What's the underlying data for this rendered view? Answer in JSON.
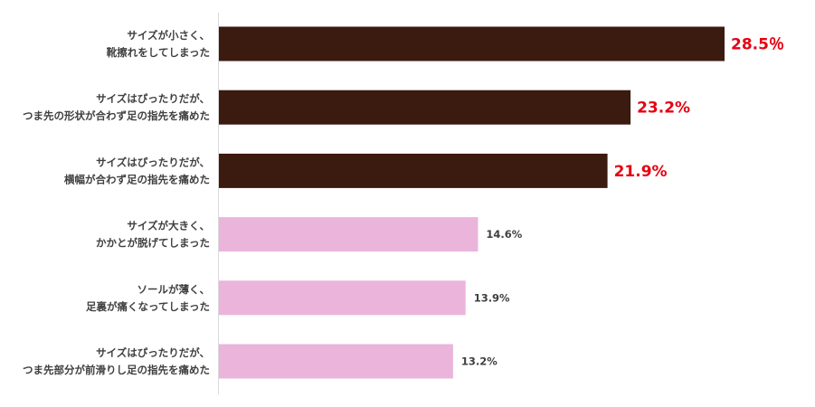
{
  "chart_data": {
    "type": "bar",
    "orientation": "horizontal",
    "categories": [
      [
        "サイズが小さく、",
        "靴擦れをしてしまった"
      ],
      [
        "サイズはぴったりだが、",
        "つま先の形状が合わず足の指先を痛めた"
      ],
      [
        "サイズはぴったりだが、",
        "横幅が合わず足の指先を痛めた"
      ],
      [
        "サイズが大きく、",
        "かかとが脱げてしまった"
      ],
      [
        "ソールが薄く、",
        "足裏が痛くなってしまった"
      ],
      [
        "サイズはぴったりだが、",
        "つま先部分が前滑りし足の指先を痛めた"
      ]
    ],
    "values": [
      28.5,
      23.2,
      21.9,
      14.6,
      13.9,
      13.2
    ],
    "value_labels": [
      "28.5％",
      "23.2%",
      "21.9%",
      "14.6%",
      "13.9%",
      "13.2%"
    ],
    "xlim": [
      0,
      31.2
    ],
    "grid": false,
    "legend": "none",
    "highlight_count": 3
  },
  "colors": {
    "highlight_bar": "#3b1a0f",
    "normal_bar": "#eab4db",
    "highlight_label": "#e60012",
    "normal_label": "#404040",
    "axis_line": "#d9d9d9"
  }
}
